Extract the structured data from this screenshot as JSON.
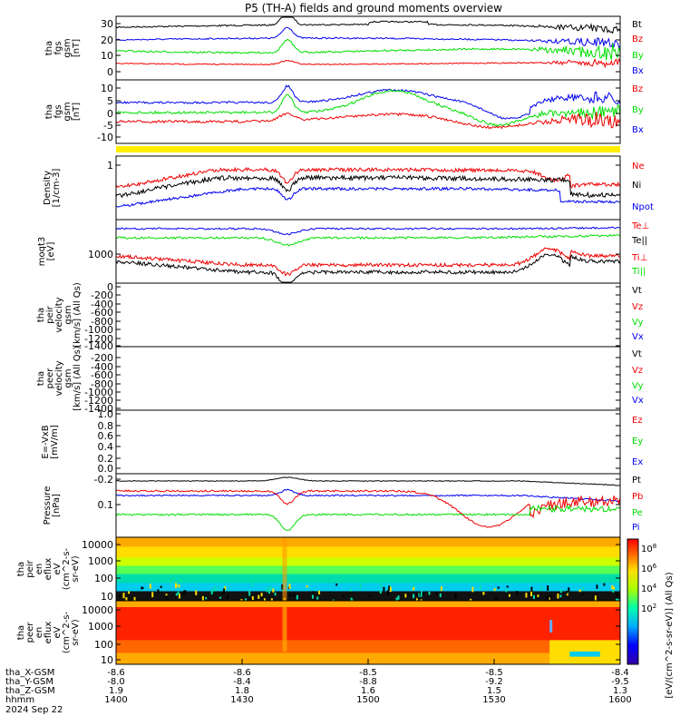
{
  "title": "P5 (TH-A) fields and ground moments overview",
  "colors": {
    "black": "#000000",
    "red": "#ee0000",
    "green": "#00dd00",
    "blue": "#0000ee",
    "yellow": "#ffee00"
  },
  "chart_data": [
    {
      "id": "fgs_gsm",
      "type": "line",
      "ylabel": [
        "tha",
        "fgs",
        "gsm",
        "[nT]"
      ],
      "ylim": [
        -5,
        35
      ],
      "yticks": [
        "30",
        "20",
        "10",
        "0"
      ],
      "series": [
        {
          "name": "Bt",
          "color": "#000000"
        },
        {
          "name": "Bz",
          "color": "#ee0000"
        },
        {
          "name": "By",
          "color": "#00dd00"
        },
        {
          "name": "Bx",
          "color": "#0000ee"
        }
      ]
    },
    {
      "id": "fgs_gsm_comp",
      "type": "line",
      "ylabel": [
        "tha",
        "fgs",
        "gsm",
        "[nT]"
      ],
      "ylim": [
        -16,
        14
      ],
      "yticks": [
        "10",
        "5",
        "0",
        "-5",
        "-10"
      ],
      "series": [
        {
          "name": "Bz",
          "color": "#ee0000"
        },
        {
          "name": "By",
          "color": "#00dd00"
        },
        {
          "name": "Bx",
          "color": "#0000ee"
        }
      ]
    },
    {
      "id": "density",
      "type": "line",
      "ylabel": [
        "Density",
        "[1/cm-3]"
      ],
      "scale": "log",
      "yticks": [
        "1"
      ],
      "series": [
        {
          "name": "Ne",
          "color": "#ee0000"
        },
        {
          "name": "Ni",
          "color": "#000000"
        },
        {
          "name": "Npot",
          "color": "#0000ee"
        }
      ]
    },
    {
      "id": "temperature",
      "type": "line",
      "ylabel": [
        "moqt3",
        "[eV]"
      ],
      "scale": "log",
      "yticks": [
        "1000"
      ],
      "series": [
        {
          "name": "Te⊥",
          "color": "#ee0000"
        },
        {
          "name": "Te||",
          "color": "#000000"
        },
        {
          "name": "Ti⊥",
          "color": "#ee0000"
        },
        {
          "name": "Ti||",
          "color": "#00dd00"
        }
      ]
    },
    {
      "id": "peir_velocity",
      "type": "line",
      "ylabel": [
        "tha",
        "peir",
        "velocity",
        "gsm",
        "[km/s] (All Qs)"
      ],
      "ylim": [
        -1400,
        0
      ],
      "yticks": [
        "0",
        "-200",
        "-400",
        "-600",
        "-800",
        "-1000",
        "-1200",
        "-1400"
      ],
      "series": [
        {
          "name": "Vt",
          "color": "#000000"
        },
        {
          "name": "Vz",
          "color": "#ee0000"
        },
        {
          "name": "Vy",
          "color": "#00dd00"
        },
        {
          "name": "Vx",
          "color": "#0000ee"
        }
      ]
    },
    {
      "id": "peer_velocity",
      "type": "line",
      "ylabel": [
        "tha",
        "peer",
        "velocity",
        "gsm",
        "[km/s] (All Qs)"
      ],
      "ylim": [
        -1400,
        0
      ],
      "yticks": [
        "-200",
        "-400",
        "-600",
        "-800",
        "-1000",
        "-1200",
        "-1400"
      ],
      "series": [
        {
          "name": "Vt",
          "color": "#000000"
        },
        {
          "name": "Vz",
          "color": "#ee0000"
        },
        {
          "name": "Vy",
          "color": "#00dd00"
        },
        {
          "name": "Vx",
          "color": "#0000ee"
        }
      ]
    },
    {
      "id": "efield",
      "type": "line",
      "ylabel": [
        "E=-VxB",
        "[mV/m]"
      ],
      "ylim": [
        -0.2,
        1.0
      ],
      "yticks": [
        "1.0",
        "0.8",
        "0.6",
        "0.4",
        "0.2",
        "0.0",
        "-0.2"
      ],
      "series": [
        {
          "name": "Ez",
          "color": "#ee0000"
        },
        {
          "name": "Ey",
          "color": "#00dd00"
        },
        {
          "name": "Ex",
          "color": "#0000ee"
        }
      ]
    },
    {
      "id": "pressure",
      "type": "line",
      "ylabel": [
        "Pressure",
        "[nPa]"
      ],
      "scale": "log",
      "yticks": [
        "0.1"
      ],
      "series": [
        {
          "name": "Pt",
          "color": "#000000"
        },
        {
          "name": "Pb",
          "color": "#ee0000"
        },
        {
          "name": "Pe",
          "color": "#00dd00"
        },
        {
          "name": "Pi",
          "color": "#0000ee"
        }
      ]
    },
    {
      "id": "peir_eflux",
      "type": "heatmap",
      "ylabel": [
        "tha",
        "peir",
        "en",
        "eflux",
        "eV",
        "(cm^2-s-",
        "sr-eV)"
      ],
      "scale": "log",
      "yticks": [
        "10000",
        "1000",
        "100",
        "10"
      ]
    },
    {
      "id": "peer_eflux",
      "type": "heatmap",
      "ylabel": [
        "tha",
        "peer",
        "en",
        "eflux",
        "eV",
        "(cm^2-s-",
        "sr-eV)"
      ],
      "scale": "log",
      "yticks": [
        "10000",
        "1000",
        "100",
        "10"
      ]
    }
  ],
  "colorbar": {
    "ticks": [
      "10^8",
      "10^6",
      "10^4",
      "10^2"
    ],
    "label": "[eV/(cm^2-s-sr-eV)] (All Qs)"
  },
  "xaxis": {
    "rows": [
      {
        "label": "tha_X-GSM",
        "values": [
          "-8.6",
          "-8.6",
          "-8.5",
          "-8.5",
          "-8.4"
        ]
      },
      {
        "label": "tha_Y-GSM",
        "values": [
          "-8.0",
          "-8.4",
          "-8.8",
          "-9.2",
          "-9.5"
        ]
      },
      {
        "label": "tha_Z-GSM",
        "values": [
          "1.9",
          "1.8",
          "1.6",
          "1.5",
          "1.3"
        ]
      },
      {
        "label": "hhmm",
        "values": [
          "1400",
          "1430",
          "1500",
          "1530",
          "1600"
        ]
      }
    ],
    "date": "2024 Sep 22"
  }
}
